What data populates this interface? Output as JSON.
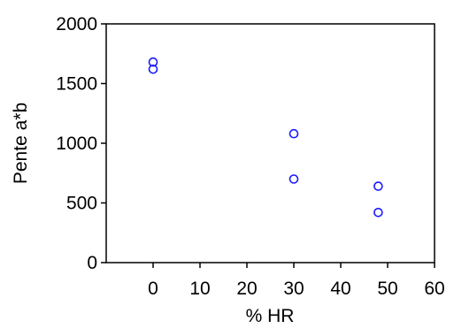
{
  "chart_data": {
    "type": "scatter",
    "title": "",
    "xlabel": "% HR",
    "ylabel": "Pente a*b",
    "xlim": [
      -10,
      60
    ],
    "ylim": [
      0,
      2000
    ],
    "xticks": [
      0,
      10,
      20,
      30,
      40,
      50,
      60
    ],
    "yticks": [
      0,
      500,
      1000,
      1500,
      2000
    ],
    "xtick_labels": [
      "0",
      "10",
      "20",
      "30",
      "40",
      "50",
      "60"
    ],
    "ytick_labels": [
      "0",
      "500",
      "1000",
      "1500",
      "2000"
    ],
    "grid": false,
    "legend": "none",
    "marker": "open-circle",
    "color": "#1a1aff",
    "series": [
      {
        "x": [
          0,
          0,
          30,
          30,
          48,
          48
        ],
        "y": [
          1680,
          1620,
          1080,
          700,
          640,
          420
        ]
      }
    ]
  }
}
